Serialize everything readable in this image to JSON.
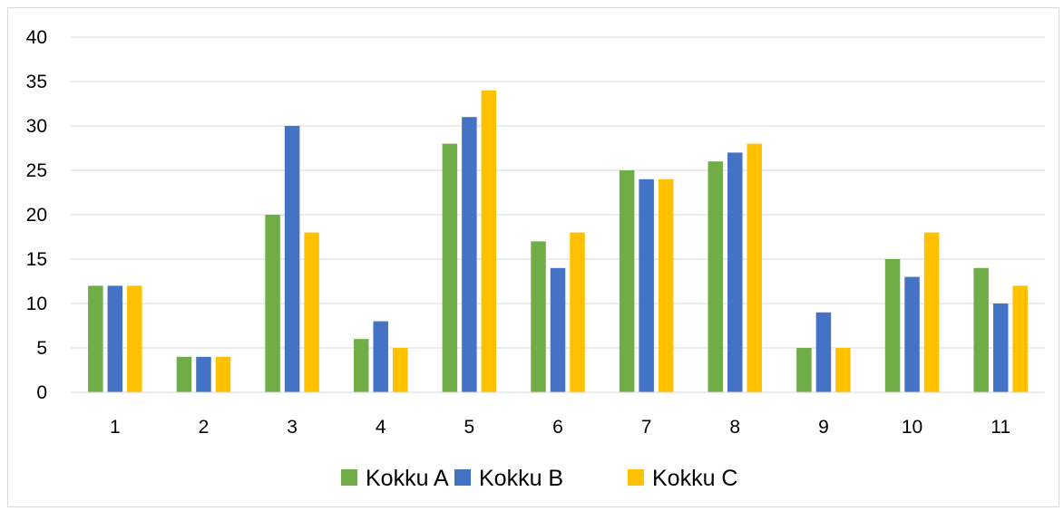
{
  "chart_data": {
    "type": "bar",
    "title": "",
    "xlabel": "",
    "ylabel": "",
    "categories": [
      "1",
      "2",
      "3",
      "4",
      "5",
      "6",
      "7",
      "8",
      "9",
      "10",
      "11"
    ],
    "series": [
      {
        "name": "Kokku A",
        "color": "#70ad47",
        "values": [
          12,
          4,
          20,
          6,
          28,
          17,
          25,
          26,
          5,
          15,
          14
        ]
      },
      {
        "name": "Kokku B",
        "color": "#4472c4",
        "values": [
          12,
          4,
          30,
          8,
          31,
          14,
          24,
          27,
          9,
          13,
          10
        ]
      },
      {
        "name": "Kokku C",
        "color": "#ffc000",
        "values": [
          12,
          4,
          18,
          5,
          34,
          18,
          24,
          28,
          5,
          18,
          12
        ]
      }
    ],
    "ylim": [
      0,
      40
    ],
    "yticks": [
      0,
      5,
      10,
      15,
      20,
      25,
      30,
      35,
      40
    ],
    "grid": true,
    "legend_position": "bottom"
  }
}
